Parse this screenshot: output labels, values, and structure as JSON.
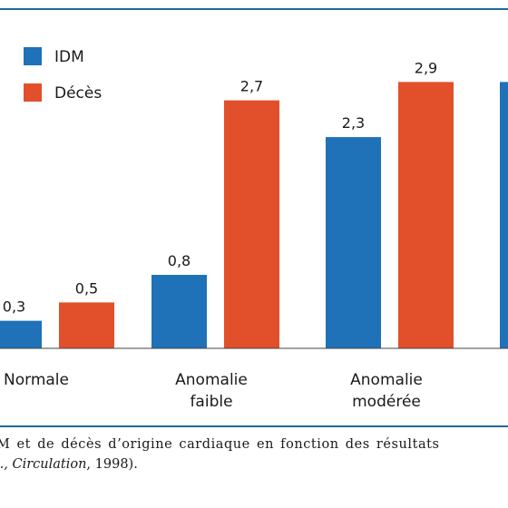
{
  "colors": {
    "frame": "#1f6d95",
    "idm": "#1f71b8",
    "deces": "#e24f2b",
    "text": "#1a1a1a"
  },
  "legend": [
    {
      "label": "IDM",
      "color": "#1f71b8"
    },
    {
      "label": "Décès",
      "color": "#e24f2b"
    }
  ],
  "caption": {
    "line1": "M et de décès d’origine cardiaque en fonction des résultats",
    "line2_italic_prefix": "l., ",
    "line2_italic": "Circulation",
    "line2_rest": ", 1998)."
  },
  "chart_data": {
    "type": "bar",
    "categories": [
      [
        "Normale"
      ],
      [
        "Anomalie",
        "faible"
      ],
      [
        "Anomalie",
        "modérée"
      ],
      [
        ""
      ]
    ],
    "series": [
      {
        "name": "IDM",
        "color": "#1f71b8",
        "values": [
          0.3,
          0.8,
          2.3,
          2.9
        ],
        "labels": [
          "0,3",
          "0,8",
          "2,3",
          ""
        ]
      },
      {
        "name": "Décès",
        "color": "#e24f2b",
        "values": [
          0.5,
          2.7,
          2.9,
          null
        ],
        "labels": [
          "0,5",
          "2,7",
          "2,9",
          ""
        ]
      }
    ],
    "ylim": [
      0,
      3.2
    ],
    "title": "",
    "xlabel": "",
    "ylabel": "",
    "grid": false,
    "legend_position": "top-left"
  }
}
